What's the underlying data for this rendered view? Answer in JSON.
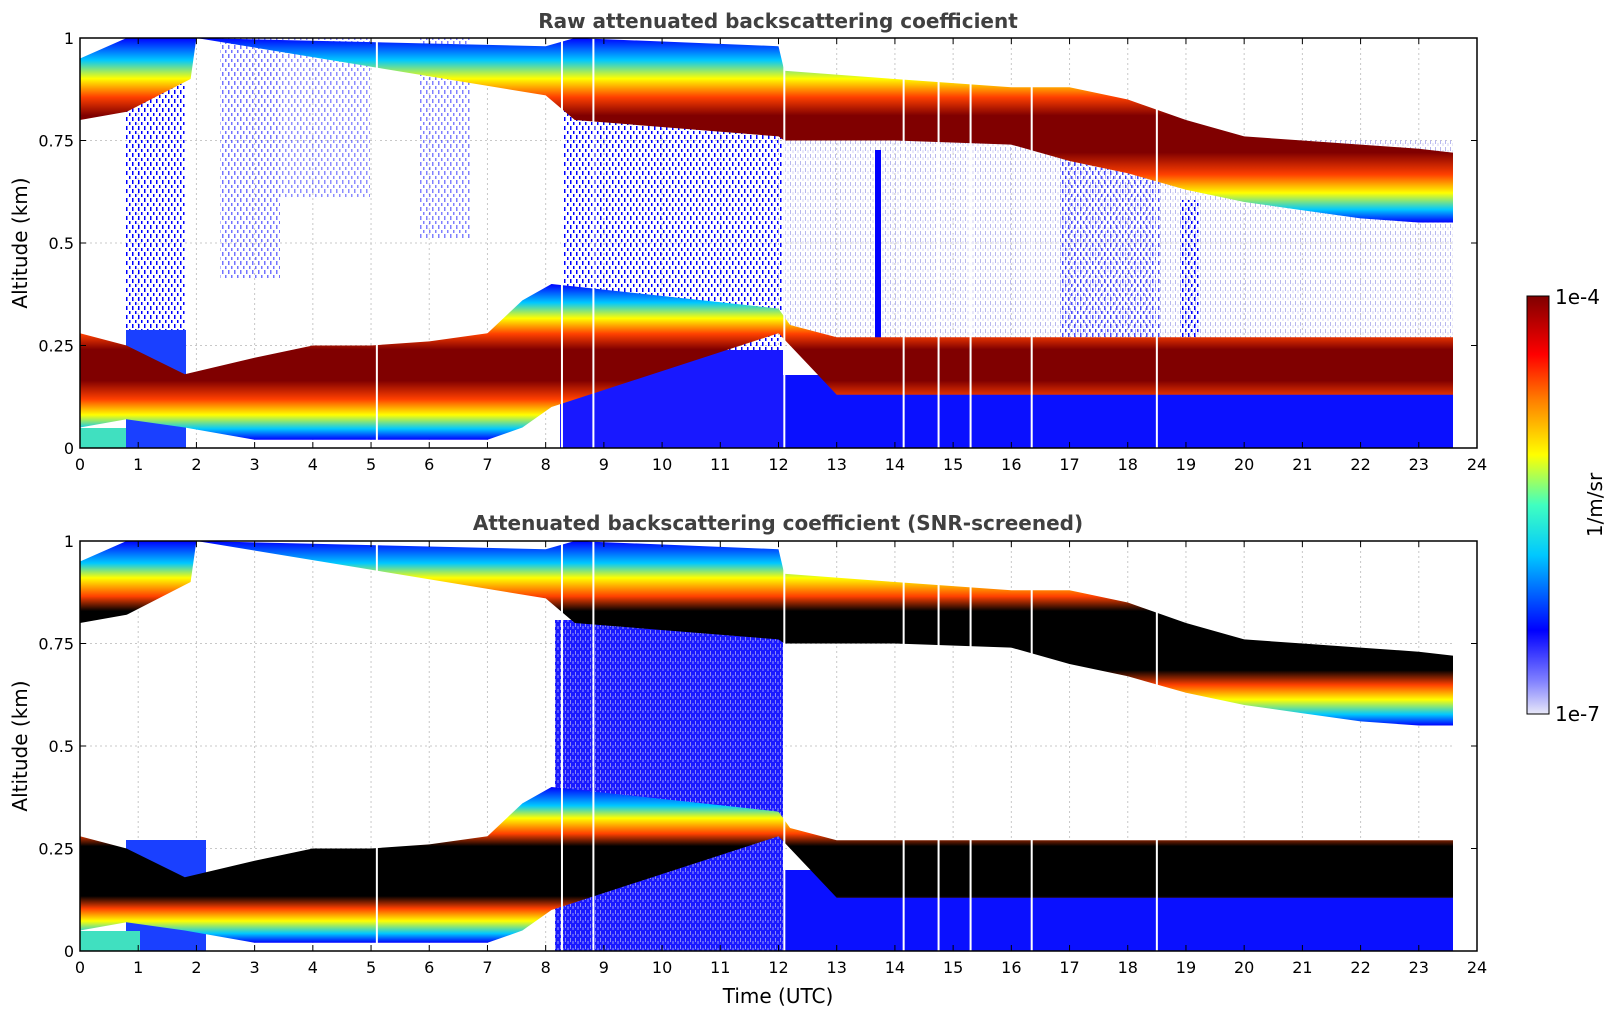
{
  "chart_data": [
    {
      "type": "heatmap",
      "title": "Raw attenuated backscattering coefficient",
      "xlabel": "",
      "ylabel": "Altitude (km)",
      "xlim": [
        0,
        24
      ],
      "ylim": [
        0,
        1
      ],
      "xticks": [
        "0",
        "1",
        "2",
        "3",
        "4",
        "5",
        "6",
        "7",
        "8",
        "9",
        "10",
        "11",
        "12",
        "13",
        "14",
        "15",
        "16",
        "17",
        "18",
        "19",
        "20",
        "21",
        "22",
        "23",
        "24"
      ],
      "yticks": [
        "0",
        "0.25",
        "0.5",
        "0.75",
        "1"
      ],
      "grid": true,
      "data_end_hour": 23.65,
      "layers": [
        {
          "name": "lower layer",
          "time": [
            0,
            0.8,
            1.8,
            3,
            4,
            5,
            6,
            7,
            7.6,
            8.1,
            12,
            12.2,
            13,
            14,
            15,
            16,
            17,
            18,
            19,
            20,
            21,
            22,
            23,
            23.6
          ],
          "base_km": [
            0.05,
            0.07,
            0.05,
            0.02,
            0.02,
            0.02,
            0.02,
            0.02,
            0.05,
            0.1,
            0.28,
            0.25,
            0.13,
            0.13,
            0.13,
            0.13,
            0.13,
            0.13,
            0.13,
            0.13,
            0.13,
            0.13,
            0.13,
            0.13
          ],
          "top_km": [
            0.28,
            0.25,
            0.18,
            0.22,
            0.25,
            0.25,
            0.26,
            0.28,
            0.36,
            0.4,
            0.34,
            0.3,
            0.27,
            0.27,
            0.27,
            0.27,
            0.27,
            0.27,
            0.27,
            0.27,
            0.27,
            0.27,
            0.27,
            0.27
          ]
        },
        {
          "name": "upper layer",
          "time": [
            0,
            0.8,
            1.9,
            2,
            8,
            8.5,
            12,
            12.1,
            14,
            16,
            17,
            18,
            19,
            20,
            21,
            22,
            23,
            23.6
          ],
          "base_km": [
            0.8,
            0.82,
            0.9,
            1.0,
            0.86,
            0.8,
            0.76,
            0.75,
            0.75,
            0.74,
            0.7,
            0.67,
            0.63,
            0.6,
            0.58,
            0.56,
            0.55,
            0.55
          ],
          "top_km": [
            0.95,
            1.0,
            1.0,
            1.0,
            0.98,
            1.0,
            0.98,
            0.92,
            0.9,
            0.88,
            0.88,
            0.85,
            0.8,
            0.76,
            0.75,
            0.74,
            0.73,
            0.72
          ]
        }
      ]
    },
    {
      "type": "heatmap",
      "title": "Attenuated backscattering coefficient (SNR-screened)",
      "xlabel": "Time (UTC)",
      "ylabel": "Altitude (km)",
      "xlim": [
        0,
        24
      ],
      "ylim": [
        0,
        1
      ],
      "xticks": [
        "0",
        "1",
        "2",
        "3",
        "4",
        "5",
        "6",
        "7",
        "8",
        "9",
        "10",
        "11",
        "12",
        "13",
        "14",
        "15",
        "16",
        "17",
        "18",
        "19",
        "20",
        "21",
        "22",
        "23",
        "24"
      ],
      "yticks": [
        "0",
        "0.25",
        "0.5",
        "0.75",
        "1"
      ],
      "grid": true,
      "saturated_color": "#000000"
    }
  ],
  "colorbar": {
    "label": "1/m/sr",
    "max_label": "1e-4",
    "min_label": "1e-7",
    "scale": "log",
    "colors": [
      "#e8e8f8",
      "#0000ff",
      "#00c8ff",
      "#40ffc0",
      "#ffff00",
      "#ff8000",
      "#ff0000",
      "#800000"
    ]
  }
}
